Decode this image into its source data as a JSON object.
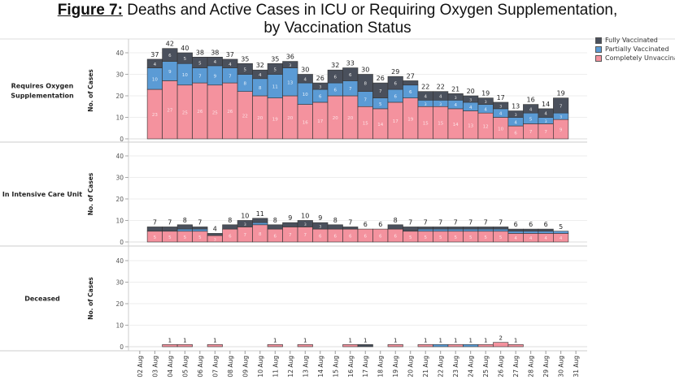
{
  "title": {
    "figure_label": "Figure 7:",
    "text": " Deaths and Active Cases in ICU or Requiring Oxygen Supplementation,",
    "line2": "by Vaccination Status"
  },
  "legend": [
    {
      "name": "Fully Vaccinated",
      "color": "#4a505c"
    },
    {
      "name": "Partially Vaccinated",
      "color": "#5b9bd5"
    },
    {
      "name": "Completely Unvaccinated",
      "color": "#f4929e"
    }
  ],
  "chart_data": {
    "type": "bar",
    "stacked": true,
    "title": "Figure 7: Deaths and Active Cases in ICU or Requiring Oxygen Supplementation, by Vaccination Status",
    "categories": [
      "02 Aug",
      "03 Aug",
      "04 Aug",
      "05 Aug",
      "06 Aug",
      "07 Aug",
      "08 Aug",
      "09 Aug",
      "10 Aug",
      "11 Aug",
      "12 Aug",
      "13 Aug",
      "14 Aug",
      "15 Aug",
      "16 Aug",
      "17 Aug",
      "18 Aug",
      "19 Aug",
      "20 Aug",
      "21 Aug",
      "22 Aug",
      "23 Aug",
      "24 Aug",
      "25 Aug",
      "26 Aug",
      "27 Aug",
      "28 Aug",
      "29 Aug",
      "30 Aug",
      "31 Aug"
    ],
    "ylabel": "No. of Cases",
    "yticks": [
      0,
      10,
      20,
      30,
      40
    ],
    "ylim": [
      0,
      45
    ],
    "grid": true,
    "legend_position": "top-right",
    "panels": [
      {
        "name": "Requires Oxygen Supplementation",
        "series": [
          {
            "name": "Completely Unvaccinated",
            "values": [
              null,
              23,
              27,
              25,
              26,
              25,
              26,
              22,
              20,
              19,
              20,
              16,
              17,
              20,
              20,
              15,
              14,
              17,
              19,
              15,
              15,
              14,
              13,
              12,
              10,
              6,
              7,
              7,
              9,
              null
            ]
          },
          {
            "name": "Partially Vaccinated",
            "values": [
              null,
              10,
              9,
              10,
              7,
              9,
              7,
              8,
              8,
              11,
              13,
              10,
              6,
              6,
              7,
              7,
              5,
              6,
              6,
              3,
              3,
              4,
              4,
              4,
              4,
              4,
              5,
              3,
              3,
              null
            ]
          },
          {
            "name": "Fully Vaccinated",
            "values": [
              null,
              4,
              6,
              5,
              5,
              4,
              4,
              5,
              4,
              5,
              3,
              4,
              3,
              6,
              6,
              8,
              7,
              6,
              2,
              4,
              4,
              3,
              3,
              3,
              3,
              3,
              4,
              4,
              7,
              null
            ]
          }
        ],
        "totals": [
          null,
          37,
          42,
          40,
          38,
          38,
          37,
          35,
          32,
          35,
          36,
          30,
          26,
          32,
          33,
          30,
          26,
          29,
          27,
          22,
          22,
          21,
          20,
          19,
          17,
          13,
          16,
          14,
          19,
          null
        ]
      },
      {
        "name": "In Intensive Care Unit",
        "series": [
          {
            "name": "Completely Unvaccinated",
            "values": [
              null,
              5,
              5,
              5,
              5,
              3,
              6,
              7,
              8,
              6,
              7,
              7,
              6,
              6,
              6,
              6,
              6,
              6,
              5,
              5,
              5,
              5,
              5,
              5,
              5,
              4,
              4,
              4,
              4,
              null
            ]
          },
          {
            "name": "Partially Vaccinated",
            "values": [
              null,
              0,
              0,
              1,
              1,
              0,
              0,
              0,
              1,
              0,
              0,
              0,
              0,
              0,
              0,
              0,
              0,
              0,
              0,
              1,
              1,
              1,
              1,
              1,
              1,
              1,
              1,
              1,
              1,
              null
            ]
          },
          {
            "name": "Fully Vaccinated",
            "values": [
              null,
              2,
              2,
              2,
              1,
              1,
              2,
              3,
              2,
              2,
              2,
              3,
              3,
              2,
              1,
              0,
              0,
              2,
              2,
              1,
              1,
              1,
              1,
              1,
              1,
              1,
              1,
              1,
              0,
              null
            ]
          }
        ],
        "totals": [
          null,
          7,
          7,
          8,
          7,
          4,
          8,
          10,
          11,
          8,
          9,
          10,
          9,
          8,
          7,
          6,
          6,
          8,
          7,
          7,
          7,
          7,
          7,
          7,
          7,
          6,
          6,
          6,
          5,
          null
        ]
      },
      {
        "name": "Deceased",
        "series": [
          {
            "name": "Completely Unvaccinated",
            "values": [
              null,
              null,
              1,
              1,
              null,
              1,
              null,
              null,
              null,
              1,
              null,
              1,
              null,
              null,
              1,
              0,
              null,
              1,
              null,
              1,
              0,
              1,
              0,
              1,
              2,
              1,
              null,
              null,
              null,
              null
            ]
          },
          {
            "name": "Partially Vaccinated",
            "values": [
              null,
              null,
              0,
              0,
              null,
              0,
              null,
              null,
              null,
              0,
              null,
              0,
              null,
              null,
              0,
              0,
              null,
              0,
              null,
              0,
              1,
              0,
              1,
              0,
              0,
              0,
              null,
              null,
              null,
              null
            ]
          },
          {
            "name": "Fully Vaccinated",
            "values": [
              null,
              null,
              0,
              0,
              null,
              0,
              null,
              null,
              null,
              0,
              null,
              0,
              null,
              null,
              0,
              1,
              null,
              0,
              null,
              0,
              0,
              0,
              0,
              0,
              0,
              0,
              null,
              null,
              null,
              null
            ]
          }
        ],
        "totals": [
          null,
          null,
          1,
          1,
          null,
          1,
          null,
          null,
          null,
          1,
          null,
          1,
          null,
          null,
          1,
          1,
          null,
          1,
          null,
          1,
          1,
          1,
          1,
          1,
          2,
          1,
          null,
          null,
          null,
          null
        ]
      }
    ]
  }
}
